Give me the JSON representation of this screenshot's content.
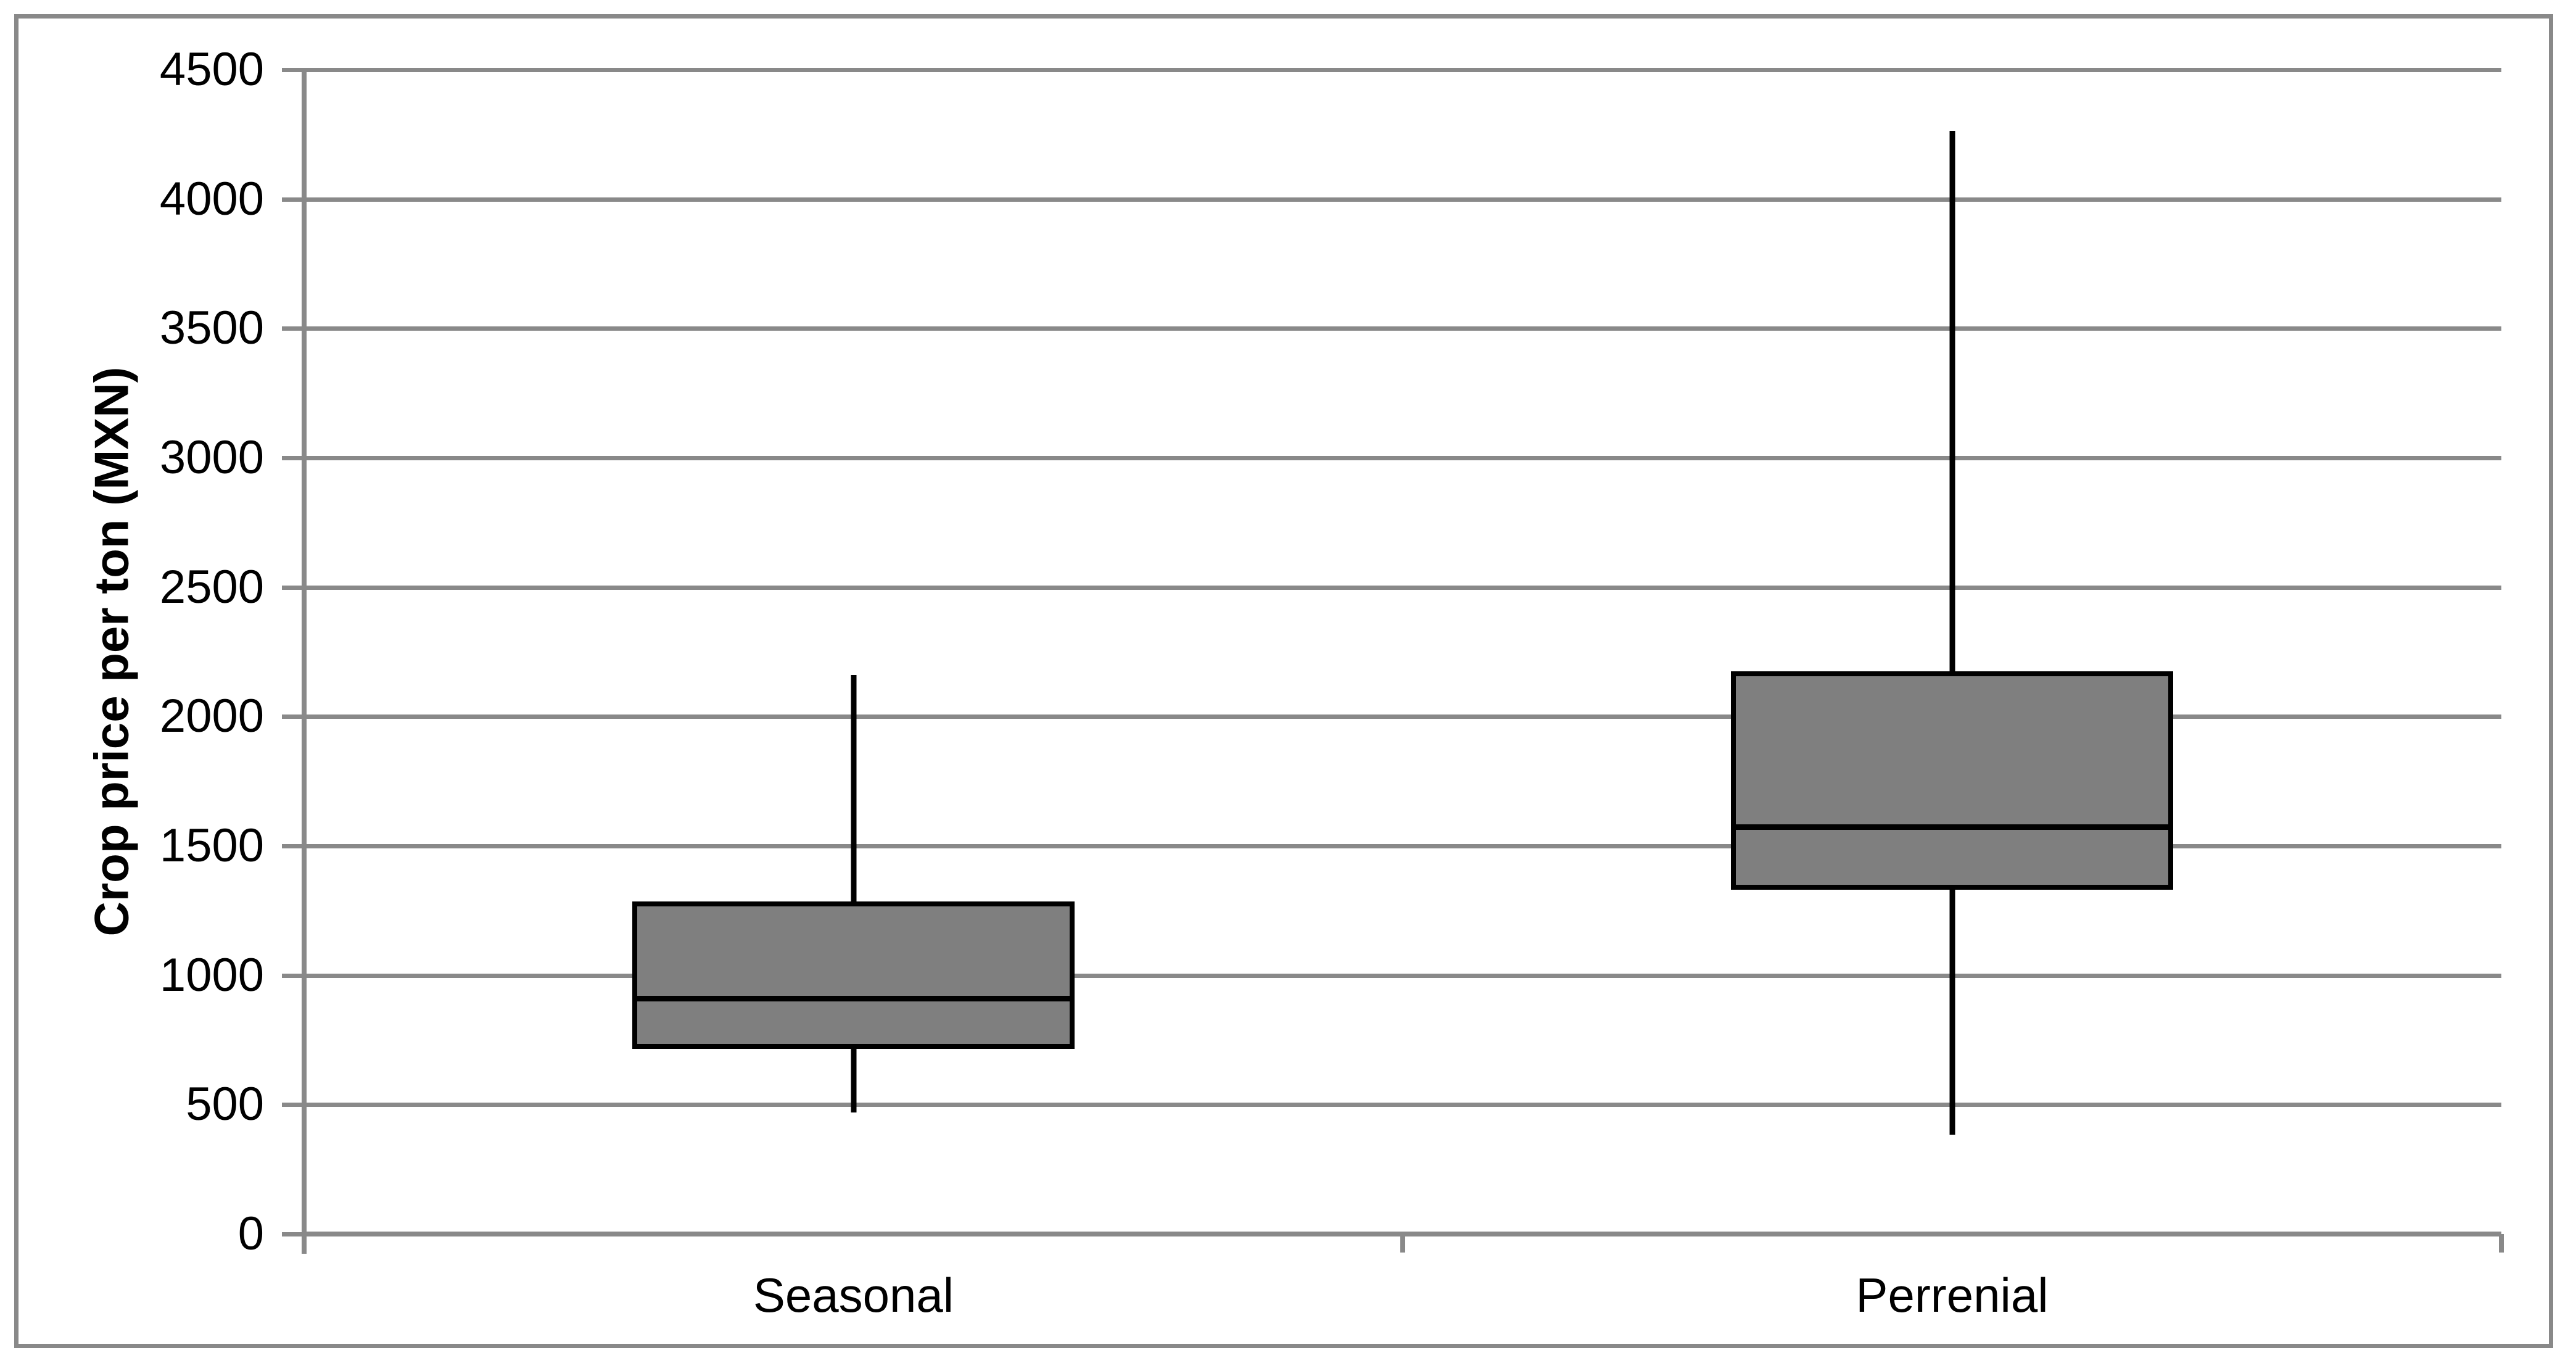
{
  "chart_data": {
    "type": "box",
    "title": "",
    "xlabel": "",
    "ylabel": "Crop price per ton (MXN)",
    "categories": [
      "Seasonal",
      "Perrenial"
    ],
    "series": [
      {
        "name": "Seasonal",
        "min": 470,
        "q1": 725,
        "median": 910,
        "q3": 1275,
        "max": 2160
      },
      {
        "name": "Perrenial",
        "min": 385,
        "q1": 1340,
        "median": 1575,
        "q3": 2165,
        "max": 4265
      }
    ],
    "y_ticks": [
      0,
      500,
      1000,
      1500,
      2000,
      2500,
      3000,
      3500,
      4000,
      4500
    ],
    "ylim": [
      0,
      4500
    ],
    "grid": "horizontal-major",
    "legend": false,
    "whisker_caps": false
  },
  "colors": {
    "box_fill": "#7f7f7f",
    "box_border": "#000000",
    "whisker": "#000000",
    "median": "#000000",
    "gridline": "#898989",
    "axis": "#898989",
    "frame_border": "#898989",
    "text": "#000000",
    "background": "#ffffff"
  }
}
